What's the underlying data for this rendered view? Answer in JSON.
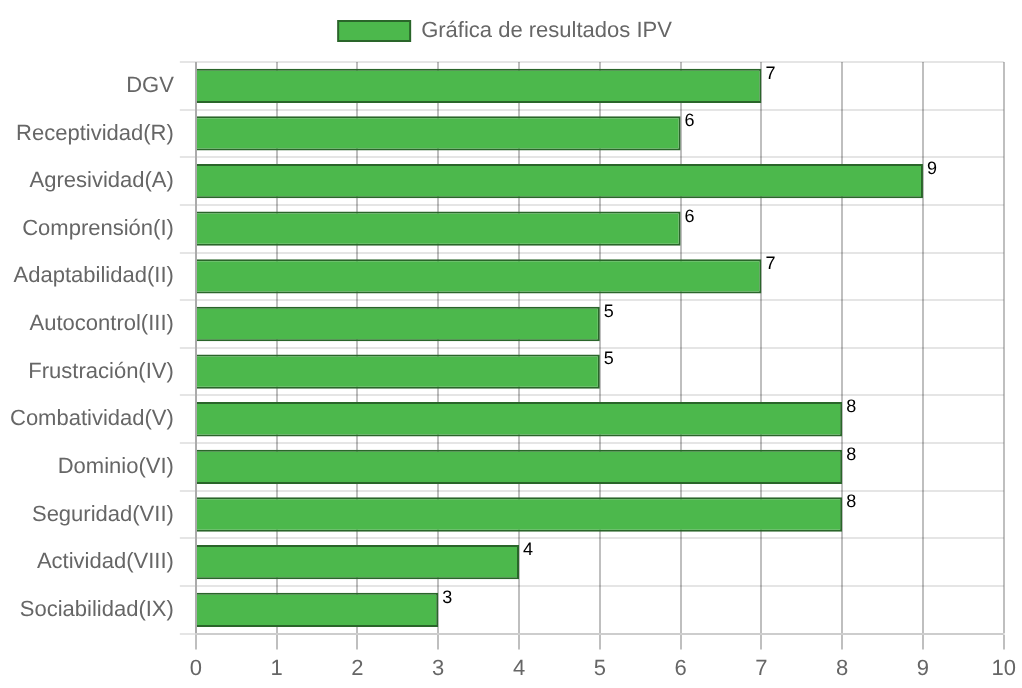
{
  "chart_data": {
    "type": "bar",
    "orientation": "horizontal",
    "categories": [
      "DGV",
      "Receptividad(R)",
      "Agresividad(A)",
      "Comprensión(I)",
      "Adaptabilidad(II)",
      "Autocontrol(III)",
      "Frustración(IV)",
      "Combatividad(V)",
      "Dominio(VI)",
      "Seguridad(VII)",
      "Actividad(VIII)",
      "Sociabilidad(IX)"
    ],
    "series": [
      {
        "name": "Gráfica de resultados IPV",
        "color": "#4cb84c",
        "values": [
          7,
          6,
          9,
          6,
          7,
          5,
          5,
          8,
          8,
          8,
          4,
          3
        ]
      }
    ],
    "xlim": [
      0,
      10
    ],
    "xticks": [
      0,
      1,
      2,
      3,
      4,
      5,
      6,
      7,
      8,
      9,
      10
    ],
    "grid": true,
    "legend": "top",
    "data_labels": true
  }
}
